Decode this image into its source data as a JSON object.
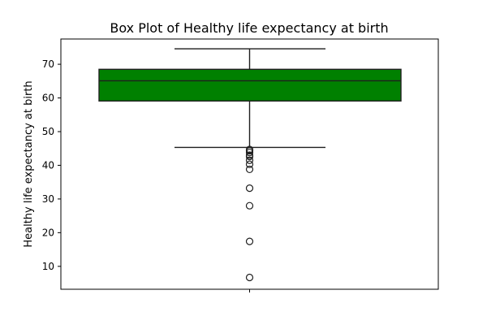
{
  "chart_data": {
    "type": "box",
    "title": "Box Plot of Healthy life expectancy at birth",
    "xlabel": "",
    "ylabel": "Healthy life expectancy at birth",
    "ylim": [
      3.2,
      77.5
    ],
    "yticks": [
      10,
      20,
      30,
      40,
      50,
      60,
      70
    ],
    "grid": false,
    "box": {
      "whisker_low": 45.3,
      "q1": 59.1,
      "median": 65.1,
      "q3": 68.5,
      "whisker_high": 74.6
    },
    "outliers": [
      44.7,
      44.3,
      43.8,
      43.0,
      42.6,
      41.5,
      40.3,
      38.8,
      33.2,
      28.0,
      17.4,
      6.7
    ],
    "colors": {
      "box_fill": "#008000",
      "box_edge": "#1f1f1f",
      "median": "#1f1f1f",
      "whisker": "#1f1f1f",
      "outlier_edge": "#1f1f1f",
      "axes": "#000000"
    }
  }
}
